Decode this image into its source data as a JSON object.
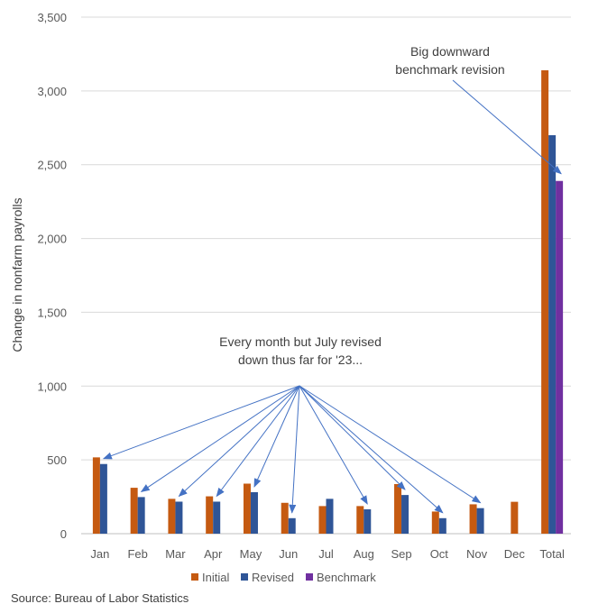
{
  "chart_data": {
    "type": "bar",
    "categories": [
      "Jan",
      "Feb",
      "Mar",
      "Apr",
      "May",
      "Jun",
      "Jul",
      "Aug",
      "Sep",
      "Oct",
      "Nov",
      "Dec",
      "Total"
    ],
    "series": [
      {
        "name": "Initial",
        "color": "#C55A11",
        "values": [
          517,
          311,
          236,
          253,
          339,
          209,
          187,
          187,
          336,
          150,
          199,
          216,
          3140
        ]
      },
      {
        "name": "Revised",
        "color": "#2F5597",
        "values": [
          472,
          248,
          217,
          217,
          281,
          105,
          236,
          165,
          262,
          105,
          173,
          null,
          2700
        ]
      },
      {
        "name": "Benchmark",
        "color": "#7030A0",
        "values": [
          null,
          null,
          null,
          null,
          null,
          null,
          null,
          null,
          null,
          null,
          null,
          null,
          2390
        ]
      }
    ],
    "ylabel": "Change in nonfarm payrolls",
    "ylim": [
      0,
      3500
    ],
    "yticks": [
      0,
      500,
      1000,
      1500,
      2000,
      2500,
      3000,
      3500
    ],
    "ytick_labels": [
      "0",
      "500",
      "1,000",
      "1,500",
      "2,000",
      "2,500",
      "3,000",
      "3,500"
    ],
    "grid": true,
    "legend_position": "bottom",
    "annotations": [
      {
        "id": "monthly",
        "lines": [
          "Every month but July revised",
          "down thus far for '23..."
        ],
        "targets": [
          "Jan",
          "Feb",
          "Mar",
          "Apr",
          "May",
          "Jun",
          "Aug",
          "Sep",
          "Oct",
          "Nov"
        ]
      },
      {
        "id": "benchmark",
        "lines": [
          "Big downward",
          "benchmark revision"
        ],
        "targets": [
          "Total"
        ]
      }
    ],
    "source": "Source: Bureau of Labor Statistics",
    "colors": {
      "arrow": "#4472C4",
      "grid": "#D9D9D9",
      "axis": "#BFBFBF"
    }
  }
}
